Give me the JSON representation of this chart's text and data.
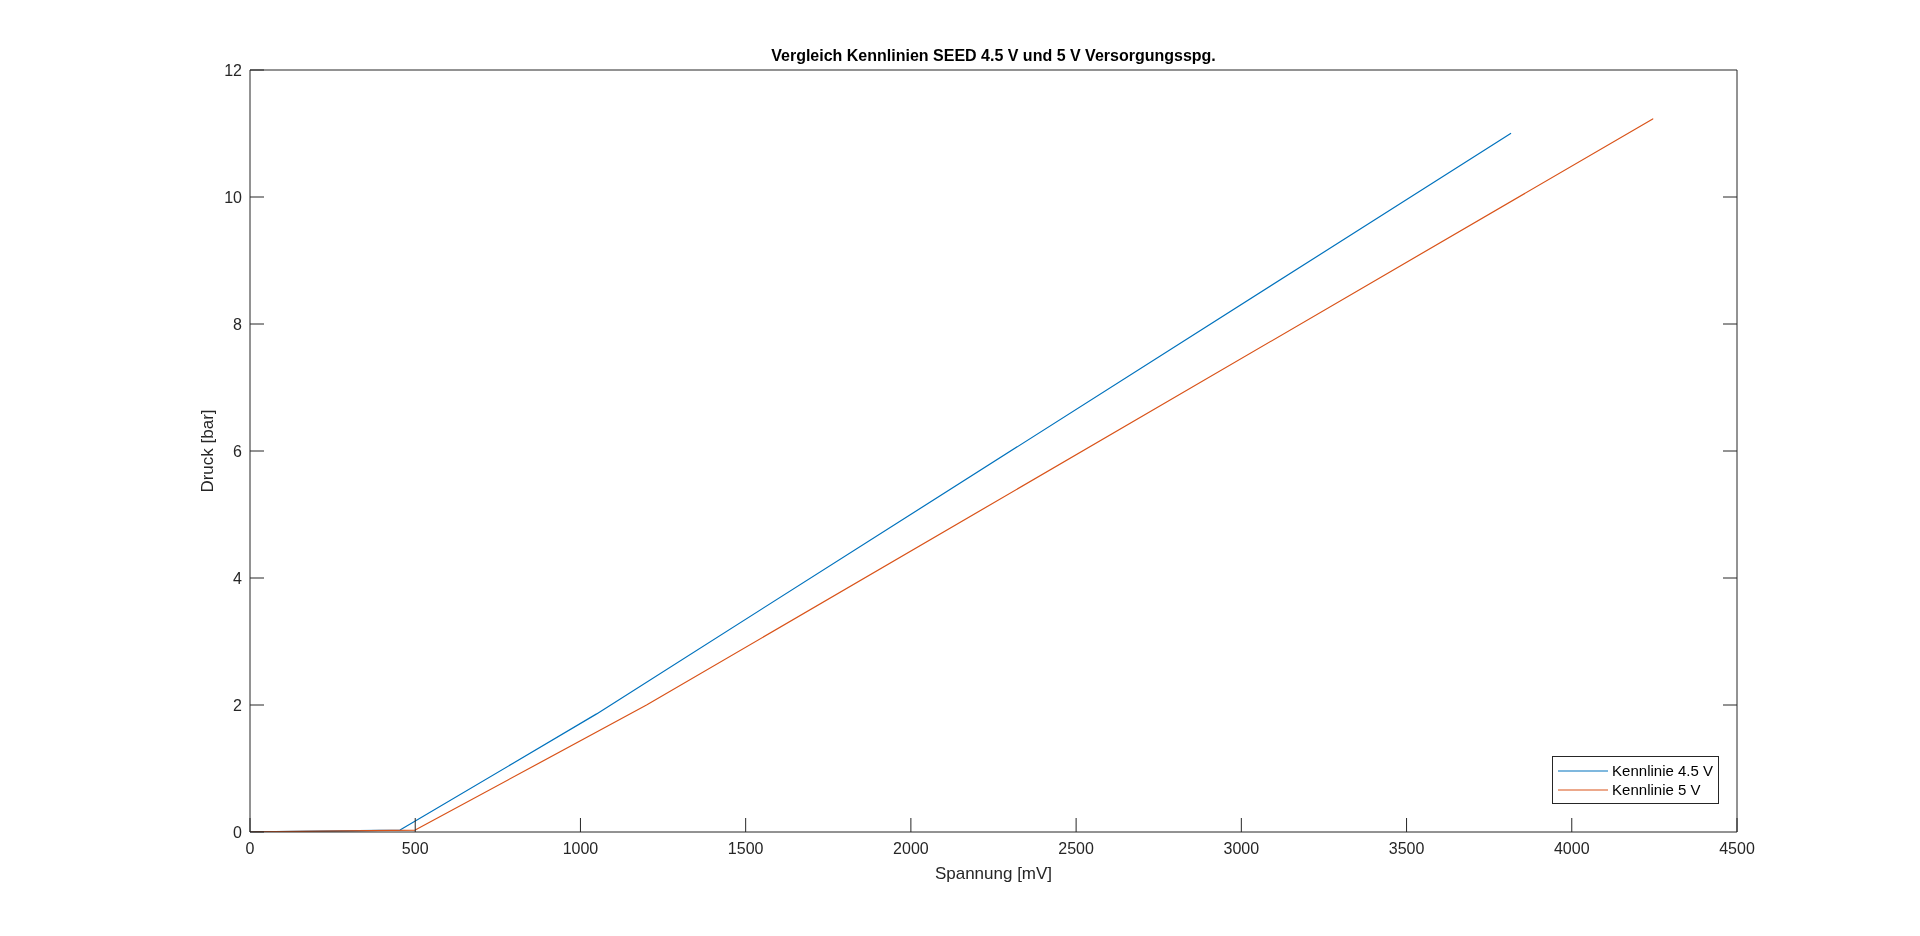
{
  "chart_data": {
    "type": "line",
    "title": "Vergleich Kennlinien SEED 4.5 V und 5 V Versorgungsspg.",
    "xlabel": "Spannung [mV]",
    "ylabel": "Druck [bar]",
    "series": [
      {
        "name": "Kennlinie 4.5 V",
        "color": "#0072bd",
        "x": [
          0,
          454,
          1049,
          3815
        ],
        "values": [
          0,
          0.03,
          1.86,
          11.0
        ]
      },
      {
        "name": "Kennlinie 5 V",
        "color": "#d95319",
        "x": [
          0,
          500,
          1200,
          4245
        ],
        "values": [
          0,
          0.03,
          2.0,
          11.23
        ]
      }
    ],
    "xlim": [
      0,
      4500
    ],
    "xticks": [
      0,
      500,
      1000,
      1500,
      2000,
      2500,
      3000,
      3500,
      4000,
      4500
    ],
    "ylim": [
      0,
      12
    ],
    "yticks": [
      0,
      2,
      4,
      6,
      8,
      10,
      12
    ],
    "grid": false,
    "legend": "bottom right",
    "marker": "none",
    "line_style": "solid"
  }
}
